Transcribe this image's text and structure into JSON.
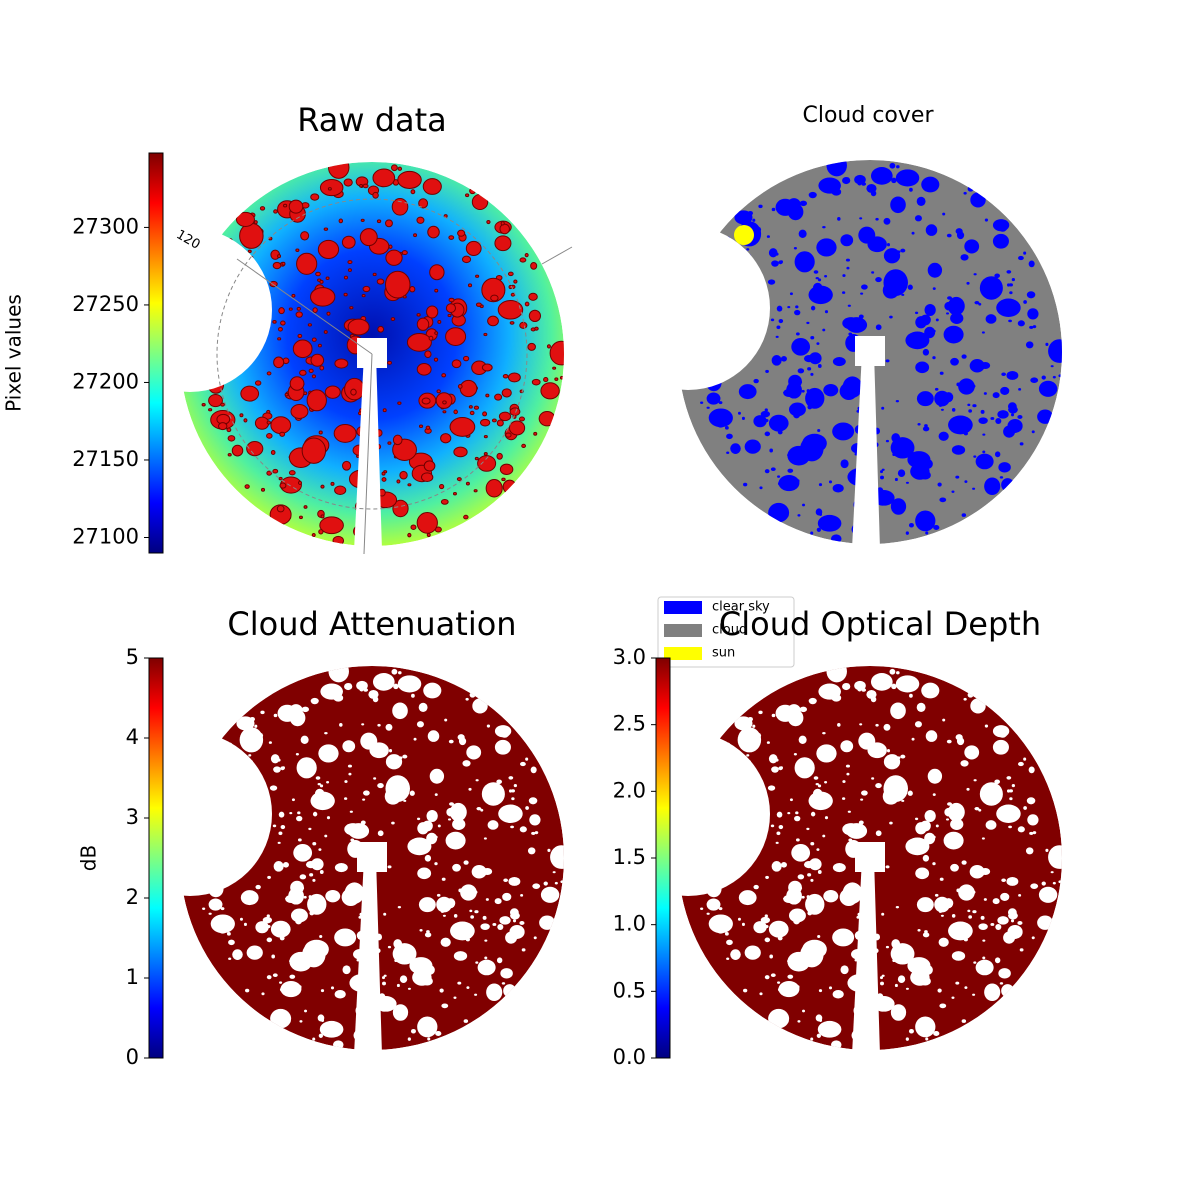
{
  "chart_data": [
    {
      "type": "image",
      "title": "Raw data",
      "annotation": "120",
      "colormap": "jet",
      "colorbar": {
        "label": "Pixel values",
        "lim": [
          27090,
          27348
        ],
        "ticks": [
          27100,
          27150,
          27200,
          27250,
          27300
        ]
      }
    },
    {
      "type": "mask",
      "title": "Cloud cover",
      "legend": [
        {
          "name": "clear sky",
          "color": "#0000ff"
        },
        {
          "name": "cloud",
          "color": "#808080"
        },
        {
          "name": "sun",
          "color": "#ffff00"
        }
      ]
    },
    {
      "type": "image",
      "title": "Cloud Attenuation",
      "colormap": "jet",
      "color": "#800000",
      "colorbar": {
        "label": "dB",
        "lim": [
          0,
          5
        ],
        "ticks": [
          0,
          1,
          2,
          3,
          4,
          5
        ]
      }
    },
    {
      "type": "image",
      "title": "Cloud Optical Depth",
      "colormap": "jet",
      "color": "#800000",
      "colorbar": {
        "lim": [
          0,
          3
        ],
        "ticks": [
          {
            "value": 0,
            "label": "0.0"
          },
          {
            "value": 0.5,
            "label": "0.5"
          },
          {
            "value": 1,
            "label": "1.0"
          },
          {
            "value": 1.5,
            "label": "1.5"
          },
          {
            "value": 2,
            "label": "2.0"
          },
          {
            "value": 2.5,
            "label": "2.5"
          },
          {
            "value": 3,
            "label": "3.0"
          }
        ]
      }
    }
  ]
}
